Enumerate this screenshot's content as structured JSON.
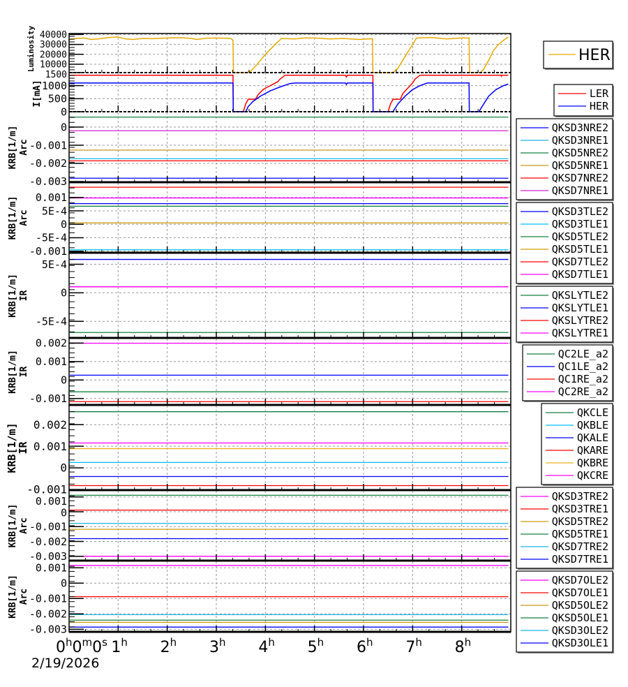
{
  "chart_data": [
    {
      "type": "line",
      "ylabel": [
        "Luminosity"
      ],
      "ylim": [
        1500,
        41000
      ],
      "yticks": [
        {
          "value": 40000,
          "label": "40000"
        },
        {
          "value": 30000,
          "label": "30000"
        },
        {
          "value": 20000,
          "label": "20000"
        },
        {
          "value": 10000,
          "label": "10000"
        },
        {
          "value": 1500,
          "label": "1500"
        }
      ],
      "legend_style": "large",
      "series": [
        {
          "name": "HER",
          "color": "#e6a800",
          "points": [
            [
              0,
              34500
            ],
            [
              0.15,
              36000
            ],
            [
              0.3,
              36500
            ],
            [
              0.45,
              35000
            ],
            [
              0.6,
              35500
            ],
            [
              0.8,
              37000
            ],
            [
              1,
              37500
            ],
            [
              1.15,
              35500
            ],
            [
              1.3,
              35000
            ],
            [
              1.5,
              36000
            ],
            [
              1.7,
              35800
            ],
            [
              2,
              36500
            ],
            [
              2.3,
              36800
            ],
            [
              2.5,
              36000
            ],
            [
              2.6,
              35000
            ],
            [
              2.8,
              36200
            ],
            [
              3,
              36500
            ],
            [
              3.2,
              36200
            ],
            [
              3.3,
              36000
            ],
            [
              3.34,
              34000
            ],
            [
              3.35,
              1500
            ],
            [
              3.62,
              1500
            ],
            [
              3.7,
              3000
            ],
            [
              3.8,
              8000
            ],
            [
              3.9,
              14000
            ],
            [
              4.0,
              20000
            ],
            [
              4.1,
              25000
            ],
            [
              4.2,
              30000
            ],
            [
              4.33,
              36000
            ],
            [
              4.6,
              35500
            ],
            [
              4.8,
              36500
            ],
            [
              5.0,
              36500
            ],
            [
              5.3,
              35500
            ],
            [
              5.6,
              36000
            ],
            [
              5.9,
              35000
            ],
            [
              6.1,
              35500
            ],
            [
              6.18,
              35800
            ],
            [
              6.19,
              1500
            ],
            [
              6.6,
              1500
            ],
            [
              6.7,
              6000
            ],
            [
              6.8,
              14000
            ],
            [
              6.9,
              22000
            ],
            [
              7.0,
              30000
            ],
            [
              7.08,
              36500
            ],
            [
              7.4,
              37000
            ],
            [
              7.7,
              35500
            ],
            [
              8.0,
              36500
            ],
            [
              8.15,
              36500
            ],
            [
              8.16,
              1500
            ],
            [
              8.38,
              1500
            ],
            [
              8.45,
              5000
            ],
            [
              8.55,
              14000
            ],
            [
              8.65,
              24000
            ],
            [
              8.75,
              30000
            ],
            [
              8.85,
              34000
            ],
            [
              8.95,
              37500
            ]
          ]
        }
      ]
    },
    {
      "type": "line",
      "ylabel": [
        "I[mA]"
      ],
      "ylim": [
        0,
        1500
      ],
      "yticks": [
        {
          "value": 1000,
          "label": "1000"
        },
        {
          "value": 500,
          "label": "500"
        },
        {
          "value": 0,
          "label": "0"
        }
      ],
      "series": [
        {
          "name": "LER",
          "color": "#ff0000",
          "points": [
            [
              0,
              1400
            ],
            [
              3.34,
              1400
            ],
            [
              3.345,
              0
            ],
            [
              3.55,
              0
            ],
            [
              3.6,
              300
            ],
            [
              3.65,
              480
            ],
            [
              3.8,
              480
            ],
            [
              3.85,
              650
            ],
            [
              3.95,
              850
            ],
            [
              4.05,
              950
            ],
            [
              4.15,
              1050
            ],
            [
              4.25,
              1150
            ],
            [
              4.3,
              1250
            ],
            [
              4.4,
              1400
            ],
            [
              5.63,
              1400
            ],
            [
              5.65,
              1330
            ],
            [
              5.67,
              1400
            ],
            [
              6.19,
              1400
            ],
            [
              6.195,
              0
            ],
            [
              6.5,
              0
            ],
            [
              6.55,
              300
            ],
            [
              6.6,
              480
            ],
            [
              6.75,
              480
            ],
            [
              6.8,
              700
            ],
            [
              6.9,
              900
            ],
            [
              7.0,
              1100
            ],
            [
              7.05,
              1250
            ],
            [
              7.15,
              1400
            ],
            [
              8.8,
              1400
            ],
            [
              8.81,
              1360
            ],
            [
              8.82,
              1400
            ],
            [
              8.95,
              1400
            ]
          ]
        },
        {
          "name": "HER",
          "color": "#0000ff",
          "points": [
            [
              0,
              1100
            ],
            [
              3.34,
              1100
            ],
            [
              3.345,
              0
            ],
            [
              3.6,
              0
            ],
            [
              3.65,
              200
            ],
            [
              3.75,
              400
            ],
            [
              3.9,
              600
            ],
            [
              4.1,
              800
            ],
            [
              4.3,
              950
            ],
            [
              4.5,
              1080
            ],
            [
              4.6,
              1100
            ],
            [
              5.63,
              1100
            ],
            [
              5.65,
              1050
            ],
            [
              5.67,
              1100
            ],
            [
              6.19,
              1100
            ],
            [
              6.195,
              0
            ],
            [
              6.6,
              0
            ],
            [
              6.7,
              300
            ],
            [
              6.85,
              600
            ],
            [
              7.0,
              850
            ],
            [
              7.15,
              1000
            ],
            [
              7.3,
              1100
            ],
            [
              8.15,
              1100
            ],
            [
              8.155,
              0
            ],
            [
              8.35,
              0
            ],
            [
              8.45,
              300
            ],
            [
              8.55,
              600
            ],
            [
              8.7,
              850
            ],
            [
              8.85,
              1000
            ],
            [
              8.95,
              1060
            ]
          ]
        }
      ]
    },
    {
      "type": "line",
      "ylabel": [
        "KRB[1/m]",
        "Arc"
      ],
      "ylim": [
        -0.00304,
        0.00081
      ],
      "yticks": [
        {
          "value": 0,
          "label": "0"
        },
        {
          "value": -0.001,
          "label": "-0.001"
        },
        {
          "value": -0.002,
          "label": "-0.002"
        },
        {
          "value": -0.003,
          "label": "-0.003"
        }
      ],
      "series": [
        {
          "name": "QKSD3NRE2",
          "color": "#0000ff",
          "value": -0.00282
        },
        {
          "name": "QKSD3NRE1",
          "color": "#1eb4e6",
          "value": -0.00174
        },
        {
          "name": "QKSD5NRE2",
          "color": "#148040",
          "value": 0.00055
        },
        {
          "name": "QKSD5NRE1",
          "color": "#c8961e",
          "value": -0.00127
        },
        {
          "name": "QKSD7NRE2",
          "color": "#ff0000",
          "value": -0.00186
        },
        {
          "name": "QKSD7NRE1",
          "color": "#d020d0",
          "value": -0.0002
        }
      ]
    },
    {
      "type": "line",
      "ylabel": [
        "KRB[1/m]",
        "Arc"
      ],
      "ylim": [
        -0.00106,
        0.00154
      ],
      "yticks": [
        {
          "value": 0.001,
          "label": "0.001"
        },
        {
          "value": 0.0005,
          "label": "5E-4"
        },
        {
          "value": 0,
          "label": "0"
        },
        {
          "value": -0.0005,
          "label": "-5E-4"
        },
        {
          "value": -0.001,
          "label": "-0.001"
        }
      ],
      "series": [
        {
          "name": "QKSD3TLE2",
          "color": "#0000ff",
          "value": 0.00077
        },
        {
          "name": "QKSD3TLE1",
          "color": "#00bfff",
          "value": -0.00095
        },
        {
          "name": "QKSD5TLE2",
          "color": "#148040",
          "value": 0.00067
        },
        {
          "name": "QKSD5TLE1",
          "color": "#d09a10",
          "value": 5e-05
        },
        {
          "name": "QKSD7TLE2",
          "color": "#ff0000",
          "value": 0.00138
        },
        {
          "name": "QKSD7TLE1",
          "color": "#ff00ff",
          "value": 0.00098
        }
      ]
    },
    {
      "type": "line",
      "ylabel": [
        "KRB[1/m]",
        "IR"
      ],
      "ylim": [
        -0.00079,
        0.00069
      ],
      "yticks": [
        {
          "value": 0.0005,
          "label": "5E-4"
        },
        {
          "value": 0,
          "label": "0"
        },
        {
          "value": -0.0005,
          "label": "-5E-4"
        }
      ],
      "series": [
        {
          "name": "QKSLYTLE2",
          "color": "#148040",
          "value": -0.000695
        },
        {
          "name": "QKSLYTLE1",
          "color": "#0000ff",
          "value": 0.000585
        },
        {
          "name": "QKSLYTRE2",
          "color": "#ff0000",
          "value": 0.000105
        },
        {
          "name": "QKSLYTRE1",
          "color": "#ff00ff",
          "value": 0.000105
        }
      ]
    },
    {
      "type": "line",
      "ylabel": [
        "KRB[1/m]",
        "IR"
      ],
      "ylim": [
        -0.00135,
        0.00224
      ],
      "yticks": [
        {
          "value": 0.002,
          "label": "0.002"
        },
        {
          "value": 0.001,
          "label": "0.001"
        },
        {
          "value": 0,
          "label": "0"
        },
        {
          "value": -0.001,
          "label": "-0.001"
        }
      ],
      "series": [
        {
          "name": "QC2LE_a2",
          "color": "#148040",
          "value": -0.00064
        },
        {
          "name": "QC1LE_a2",
          "color": "#0000ff",
          "value": 0.00026
        },
        {
          "name": "QC1RE_a2",
          "color": "#ff0000",
          "value": -0.00117
        },
        {
          "name": "QC2RE_a2",
          "color": "#ff00ff",
          "value": 0.00199
        }
      ]
    },
    {
      "type": "line",
      "ylabel": [
        "KRB[1/m]",
        "IR"
      ],
      "ylim": [
        -0.00103,
        0.00288
      ],
      "yticks": [
        {
          "value": 0.002,
          "label": "0.002"
        },
        {
          "value": 0.001,
          "label": "0.001"
        },
        {
          "value": 0,
          "label": "0"
        },
        {
          "value": -0.001,
          "label": "-0.001"
        }
      ],
      "series": [
        {
          "name": "QKCLE",
          "color": "#148040",
          "value": 0.0026
        },
        {
          "name": "QKBLE",
          "color": "#00bfff",
          "value": 0.00025
        },
        {
          "name": "QKALE",
          "color": "#0000ff",
          "value": -0.0004
        },
        {
          "name": "QKARE",
          "color": "#ff0000",
          "value": -0.00082
        },
        {
          "name": "QKBRE",
          "color": "#f0b020",
          "value": 0.00089
        },
        {
          "name": "QKCRE",
          "color": "#ff00ff",
          "value": 0.00115
        }
      ]
    },
    {
      "type": "line",
      "ylabel": [
        "KRB[1/m]",
        "Arc"
      ],
      "ylim": [
        -0.00329,
        0.00141
      ],
      "yticks": [
        {
          "value": 0.001,
          "label": "0.001"
        },
        {
          "value": 0,
          "label": "0"
        },
        {
          "value": -0.001,
          "label": "-0.001"
        },
        {
          "value": -0.002,
          "label": "-0.002"
        },
        {
          "value": -0.003,
          "label": "-0.003"
        }
      ],
      "series": [
        {
          "name": "QKSD3TRE2",
          "color": "#ff00ff",
          "value": -0.003
        },
        {
          "name": "QKSD3TRE1",
          "color": "#ff0000",
          "value": 0.00011
        },
        {
          "name": "QKSD5TRE2",
          "color": "#d09a10",
          "value": -0.00118
        },
        {
          "name": "QKSD5TRE1",
          "color": "#148040",
          "value": 0.00111
        },
        {
          "name": "QKSD7TRE2",
          "color": "#1eb4e6",
          "value": -0.00078
        },
        {
          "name": "QKSD7TRE1",
          "color": "#0000ff",
          "value": -0.00181
        }
      ]
    },
    {
      "type": "line",
      "ylabel": [
        "KRB[1/m]",
        "Arc"
      ],
      "ylim": [
        -0.00317,
        0.00142
      ],
      "yticks": [
        {
          "value": 0.001,
          "label": "0.001"
        },
        {
          "value": 0,
          "label": "0"
        },
        {
          "value": -0.001,
          "label": "-0.001"
        },
        {
          "value": -0.002,
          "label": "-0.002"
        },
        {
          "value": -0.003,
          "label": "-0.003"
        }
      ],
      "series": [
        {
          "name": "QKSD7OLE2",
          "color": "#ff00ff",
          "value": 0.00115
        },
        {
          "name": "QKSD7OLE1",
          "color": "#ff0000",
          "value": -0.00088
        },
        {
          "name": "QKSD5OLE2",
          "color": "#c8961e",
          "value": -0.00255
        },
        {
          "name": "QKSD5OLE1",
          "color": "#148040",
          "value": -0.00241
        },
        {
          "name": "QKSD3OLE2",
          "color": "#1eb4e6",
          "value": -0.00205
        },
        {
          "name": "QKSD3OLE1",
          "color": "#0000ff",
          "value": -0.00286
        }
      ]
    }
  ],
  "x_axis": {
    "xlim_hours": [
      0,
      9
    ],
    "tick_labels": [
      "0h0m0s",
      "1h",
      "2h",
      "3h",
      "4h",
      "5h",
      "6h",
      "7h",
      "8h"
    ],
    "date": "2/19/2026",
    "grid": true
  }
}
